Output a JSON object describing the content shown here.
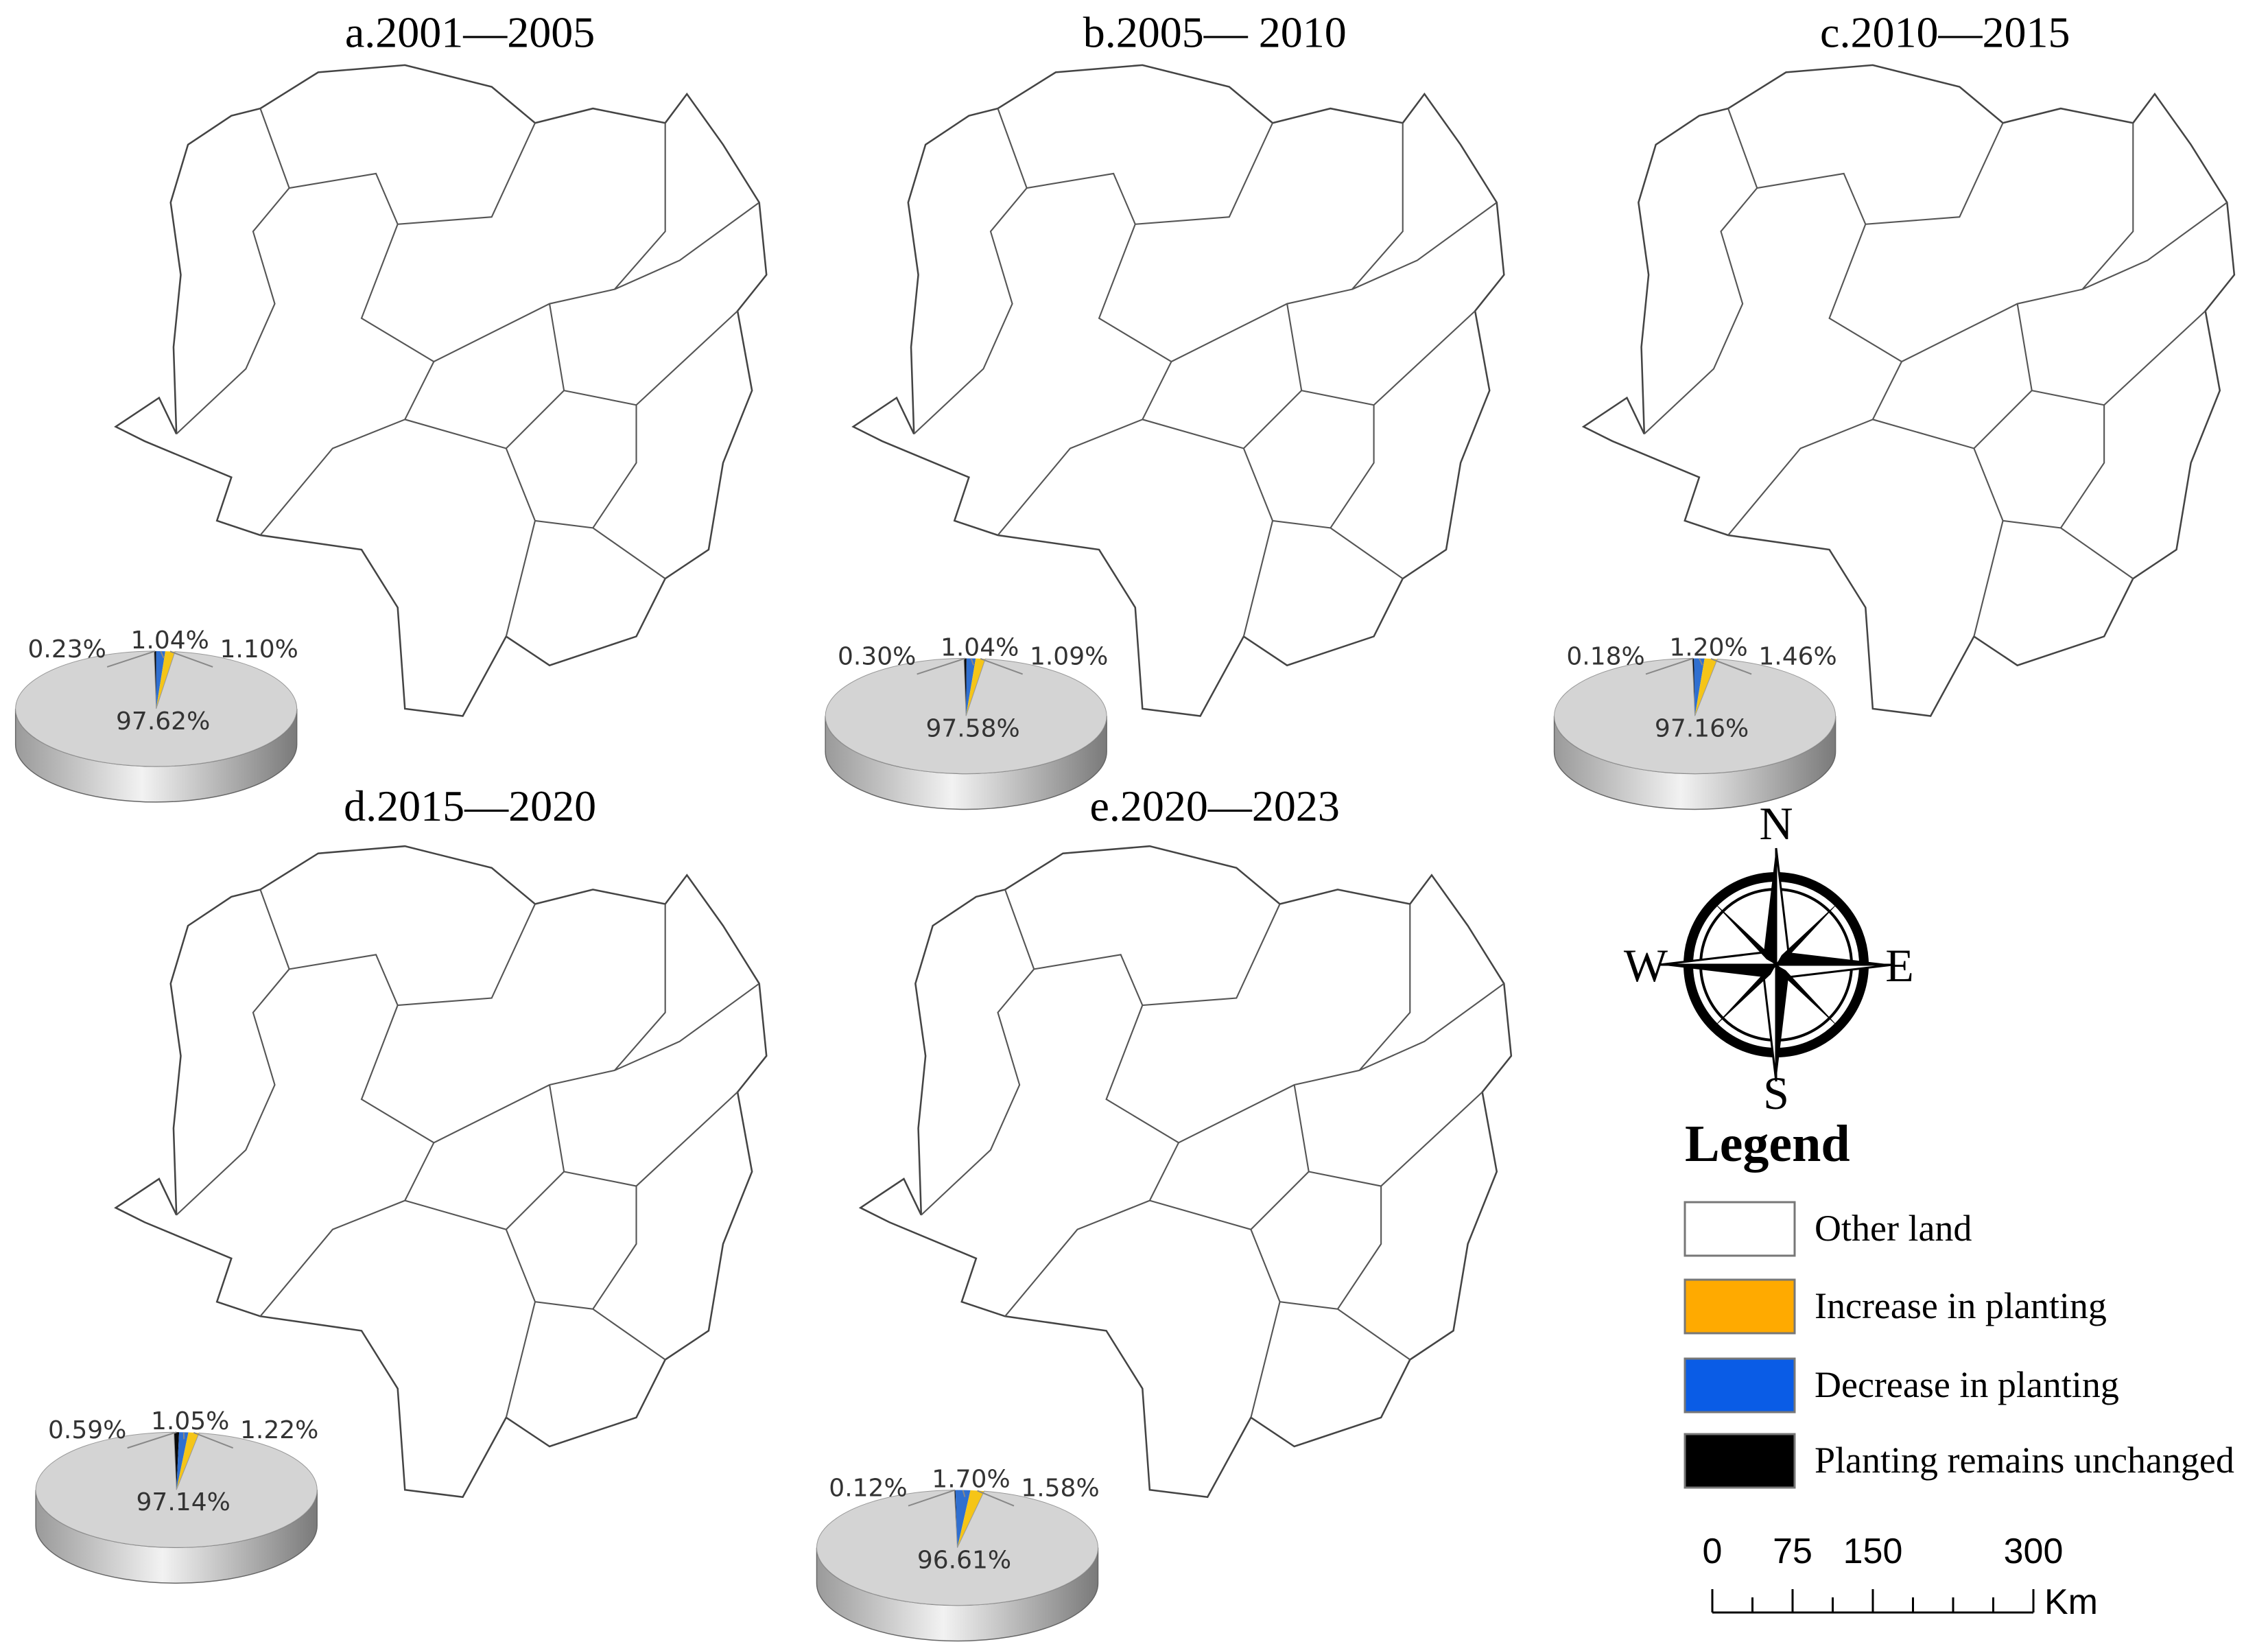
{
  "maps": [
    {
      "title": "a.2001—2005",
      "pie": {
        "values": [
          97.62,
          1.1,
          1.04,
          0.23
        ],
        "value_labels": [
          "97.62%",
          "1.10%",
          "1.04%",
          "0.23%"
        ]
      }
    },
    {
      "title": "b.2005— 2010",
      "pie": {
        "values": [
          97.58,
          1.09,
          1.04,
          0.3
        ],
        "value_labels": [
          "97.58%",
          "1.09%",
          "1.04%",
          "0.30%"
        ]
      }
    },
    {
      "title": "c.2010—2015",
      "pie": {
        "values": [
          97.16,
          1.46,
          1.2,
          0.18
        ],
        "value_labels": [
          "97.16%",
          "1.46%",
          "1.20%",
          "0.18%"
        ]
      }
    },
    {
      "title": "d.2015—2020",
      "pie": {
        "values": [
          97.14,
          1.22,
          1.05,
          0.59
        ],
        "value_labels": [
          "97.14%",
          "1.22%",
          "1.05%",
          "0.59%"
        ]
      }
    },
    {
      "title": "e.2020—2023",
      "pie": {
        "values": [
          96.61,
          1.58,
          1.7,
          0.12
        ],
        "value_labels": [
          "96.61%",
          "1.58%",
          "1.70%",
          "0.12%"
        ]
      }
    }
  ],
  "pie_colors": [
    "#d4d4d4",
    "#f5c518",
    "#2f6fd0",
    "#0a0a0a"
  ],
  "compass": {
    "north": "N",
    "south": "S",
    "west": "W",
    "east": "E"
  },
  "legend": {
    "title": "Legend",
    "items": [
      {
        "label": "Other land",
        "color": "#ffffff"
      },
      {
        "label": "Increase in planting",
        "color": "#ffaa00"
      },
      {
        "label": "Decrease in planting",
        "color": "#0a5ce6"
      },
      {
        "label": "Planting remains unchanged",
        "color": "#000000"
      }
    ]
  },
  "scale_bar": {
    "ticks": [
      0,
      75,
      150,
      300
    ],
    "unit": "Km"
  }
}
